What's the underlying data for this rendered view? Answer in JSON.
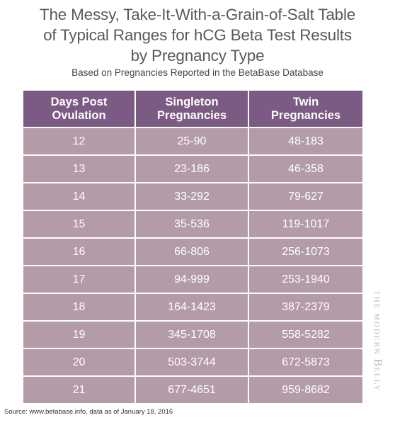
{
  "title_lines": [
    "The Messy, Take-It-With-a-Grain-of-Salt Table",
    "of Typical Ranges for hCG Beta Test Results",
    "by Pregnancy Type"
  ],
  "subtitle": "Based on Pregnancies Reported in the BetaBase Database",
  "table": {
    "headers": [
      "Days Post\nOvulation",
      "Singleton\nPregnancies",
      "Twin\nPregnancies"
    ],
    "rows": [
      [
        "12",
        "25-90",
        "48-183"
      ],
      [
        "13",
        "23-186",
        "46-358"
      ],
      [
        "14",
        "33-292",
        "79-627"
      ],
      [
        "15",
        "35-536",
        "119-1017"
      ],
      [
        "16",
        "66-806",
        "256-1073"
      ],
      [
        "17",
        "94-999",
        "253-1940"
      ],
      [
        "18",
        "164-1423",
        "387-2379"
      ],
      [
        "19",
        "345-1708",
        "558-5282"
      ],
      [
        "20",
        "503-3744",
        "672-5873"
      ],
      [
        "21",
        "677-4651",
        "959-8682"
      ]
    ]
  },
  "source": "Source: www.betabase.info, data as of January 18, 2016",
  "brand": {
    "part1": "THE MODERN ",
    "big_letter": "B",
    "part2": "ELLY"
  },
  "colors": {
    "header_bg": "#7b5a83",
    "cell_bg": "#b39ba8",
    "title_text": "#5a5a5a"
  }
}
